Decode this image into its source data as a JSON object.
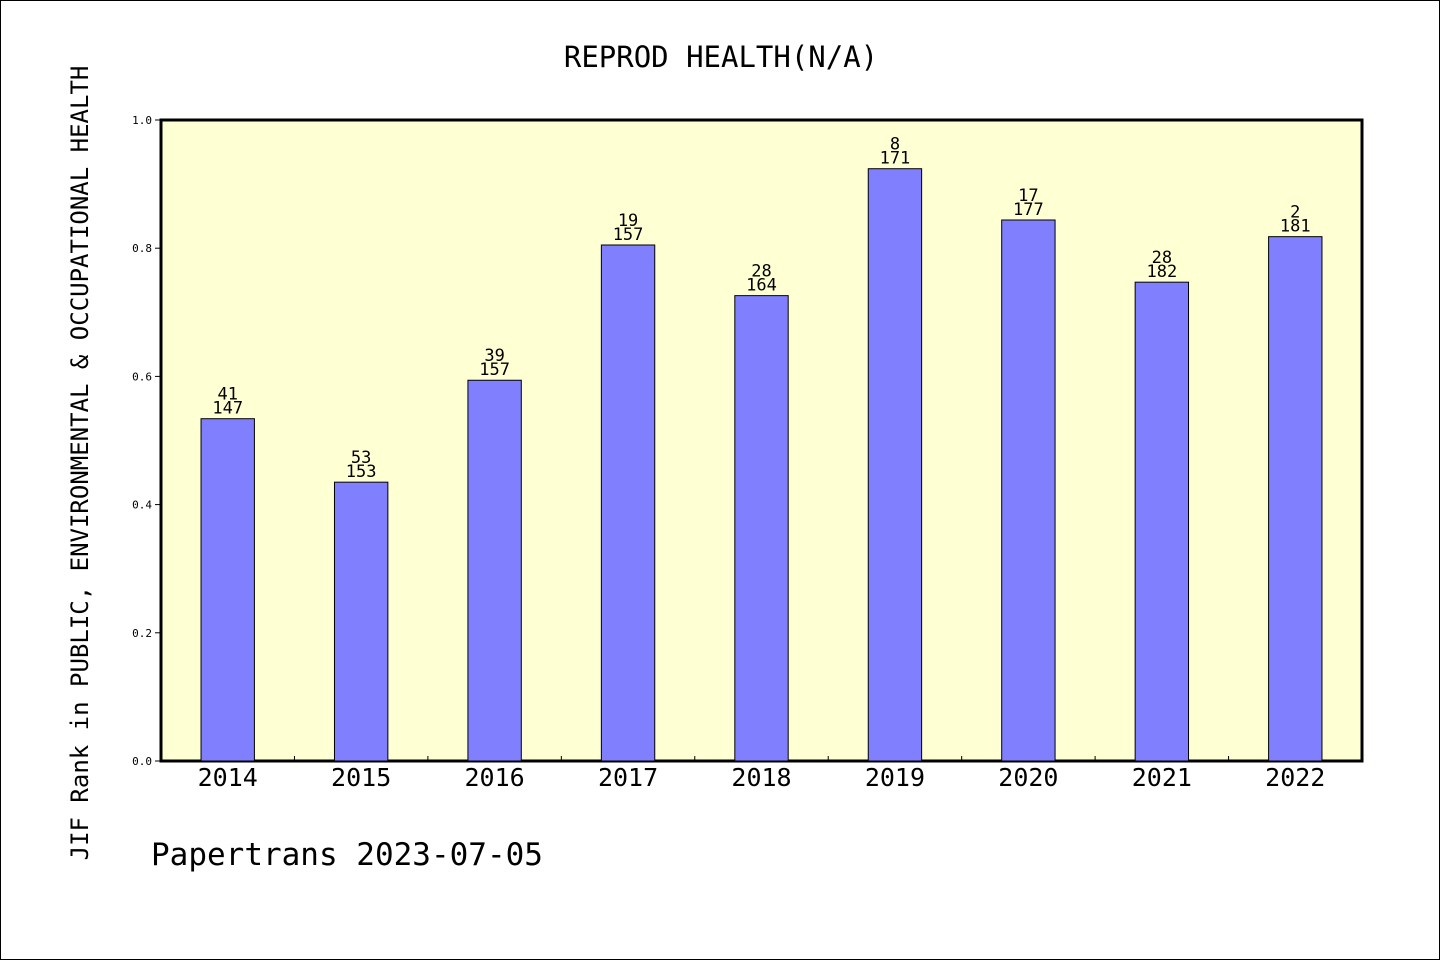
{
  "chart_data": {
    "type": "bar",
    "title": "REPROD HEALTH(N/A)",
    "ylabel": "JIF Rank in PUBLIC, ENVIRONMENTAL & OCCUPATIONAL HEALTH",
    "xlabel": "",
    "ylim": [
      0,
      1.0
    ],
    "yticks": [
      "0.0",
      "0.2",
      "0.4",
      "0.6",
      "0.8",
      "1.0"
    ],
    "categories": [
      "2014",
      "2015",
      "2016",
      "2017",
      "2018",
      "2019",
      "2020",
      "2021",
      "2022"
    ],
    "values": [
      0.534,
      0.435,
      0.594,
      0.805,
      0.726,
      0.924,
      0.844,
      0.747,
      0.818
    ],
    "rank": [
      "41",
      "53",
      "39",
      "19",
      "28",
      "8",
      "17",
      "28",
      "2"
    ],
    "total": [
      "147",
      "153",
      "157",
      "157",
      "164",
      "171",
      "177",
      "182",
      "181"
    ],
    "grid": false,
    "legend": "none",
    "colors": {
      "bar": "#8080ff",
      "plot_background": "#ffffd4",
      "outline": "#000000"
    }
  },
  "footer": {
    "text": "Papertrans 2023-07-05"
  }
}
